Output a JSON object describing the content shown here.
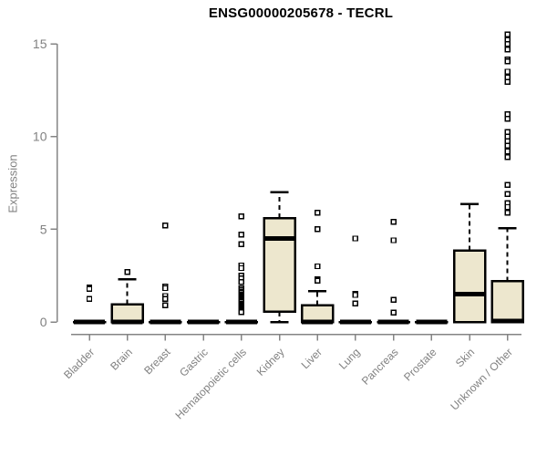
{
  "chart_data": {
    "type": "box",
    "title": "ENSG00000205678 - TECRL",
    "ylabel": "Expression",
    "xlabel": "",
    "ylim": [
      0,
      15.6
    ],
    "yticks": [
      0,
      5,
      10,
      15
    ],
    "grid": false,
    "legend": "none",
    "categories": [
      "Bladder",
      "Brain",
      "Breast",
      "Gastric",
      "Hematopoietic cells",
      "Kidney",
      "Liver",
      "Lung",
      "Pancreas",
      "Prostate",
      "Skin",
      "Unknown / Other"
    ],
    "boxes": [
      {
        "label": "Bladder",
        "whisker_low": 0,
        "q1": 0,
        "median": 0,
        "q3": 0,
        "whisker_high": 0,
        "outliers": [
          1.85,
          1.78,
          1.25
        ]
      },
      {
        "label": "Brain",
        "whisker_low": 0,
        "q1": 0,
        "median": 0,
        "q3": 0.95,
        "whisker_high": 2.3,
        "outliers": [
          2.7
        ]
      },
      {
        "label": "Breast",
        "whisker_low": 0,
        "q1": 0,
        "median": 0,
        "q3": 0,
        "whisker_high": 0,
        "outliers": [
          5.2,
          1.9,
          1.82,
          1.4,
          1.25,
          0.9
        ]
      },
      {
        "label": "Gastric",
        "whisker_low": 0,
        "q1": 0,
        "median": 0,
        "q3": 0,
        "whisker_high": 0,
        "outliers": []
      },
      {
        "label": "Hematopoietic cells",
        "whisker_low": 0,
        "q1": 0,
        "median": 0,
        "q3": 0,
        "whisker_high": 0,
        "outliers": [
          5.7,
          4.7,
          4.2,
          3.05,
          2.9,
          2.5,
          2.35,
          2.15,
          1.8,
          1.72,
          1.65,
          1.58,
          1.5,
          1.43,
          1.36,
          1.29,
          1.22,
          1.15,
          1.08,
          1.01,
          0.94,
          0.87,
          0.8,
          0.73,
          0.66,
          0.59,
          0.52
        ]
      },
      {
        "label": "Kidney",
        "whisker_low": 0,
        "q1": 0.55,
        "median": 4.5,
        "q3": 5.6,
        "whisker_high": 7.0,
        "outliers": []
      },
      {
        "label": "Liver",
        "whisker_low": 0,
        "q1": 0,
        "median": 0,
        "q3": 0.9,
        "whisker_high": 1.65,
        "outliers": [
          5.9,
          5.0,
          3.0,
          2.3,
          2.22
        ]
      },
      {
        "label": "Lung",
        "whisker_low": 0,
        "q1": 0,
        "median": 0,
        "q3": 0,
        "whisker_high": 0,
        "outliers": [
          4.5,
          1.52,
          1.45,
          1.0
        ]
      },
      {
        "label": "Pancreas",
        "whisker_low": 0,
        "q1": 0,
        "median": 0,
        "q3": 0,
        "whisker_high": 0,
        "outliers": [
          5.4,
          4.4,
          1.2,
          0.5
        ]
      },
      {
        "label": "Prostate",
        "whisker_low": 0,
        "q1": 0,
        "median": 0,
        "q3": 0,
        "whisker_high": 0,
        "outliers": []
      },
      {
        "label": "Skin",
        "whisker_low": 0,
        "q1": 0,
        "median": 1.5,
        "q3": 3.85,
        "whisker_high": 6.35,
        "outliers": []
      },
      {
        "label": "Unknown / Other",
        "whisker_low": 0,
        "q1": 0,
        "median": 0.05,
        "q3": 2.2,
        "whisker_high": 5.05,
        "outliers": [
          15.5,
          15.2,
          15.0,
          14.7,
          14.15,
          14.05,
          13.5,
          13.2,
          12.95,
          11.2,
          10.95,
          10.25,
          10.0,
          9.75,
          9.5,
          9.2,
          8.9,
          7.4,
          6.9,
          6.4,
          6.2,
          5.9
        ]
      }
    ],
    "colors": {
      "box_fill": "#EDE7CE",
      "box_border": "#000000",
      "median": "#000000",
      "whisker": "#000000",
      "outlier_stroke": "#000000",
      "axis": "#848484",
      "tick_label": "#818181",
      "title": "#000000",
      "background": "#ffffff"
    }
  }
}
